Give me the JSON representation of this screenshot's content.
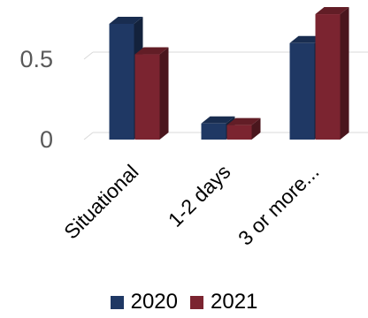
{
  "chart_data": {
    "type": "bar",
    "style": "3d-clustered-column",
    "categories": [
      "Situational",
      "1-2 days",
      "3 or more..."
    ],
    "series": [
      {
        "name": "2020",
        "values": [
          0.72,
          0.1,
          0.6
        ],
        "color": "#1f3864"
      },
      {
        "name": "2021",
        "values": [
          0.53,
          0.09,
          0.78
        ],
        "color": "#7b2430"
      }
    ],
    "y_ticks": [
      {
        "value": 0,
        "label": "0"
      },
      {
        "value": 0.5,
        "label": "0.5"
      }
    ],
    "ylim": [
      0,
      0.8
    ],
    "grid": false,
    "legend_position": "bottom"
  }
}
